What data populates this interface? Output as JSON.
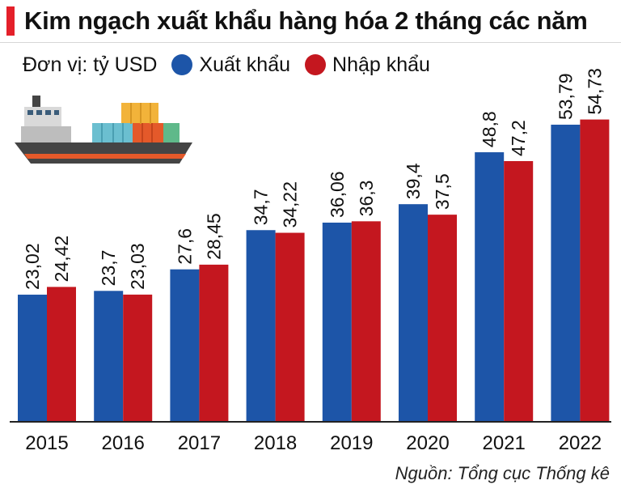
{
  "title": "Kim ngạch xuất khẩu hàng hóa 2 tháng các năm",
  "unit_label": "Đơn vị: tỷ USD",
  "source": "Nguồn: Tổng cục Thống kê",
  "colors": {
    "accent": "#e4202a",
    "export": "#1d55a8",
    "import": "#c4171f",
    "baseline": "#222222"
  },
  "illustration": "cargo-ship-icon",
  "chart_data": {
    "type": "bar",
    "title": "Kim ngạch xuất khẩu hàng hóa 2 tháng các năm",
    "xlabel": "",
    "ylabel": "tỷ USD",
    "ylim": [
      0,
      62
    ],
    "grid": false,
    "legend_position": "top-left",
    "categories": [
      "2015",
      "2016",
      "2017",
      "2018",
      "2019",
      "2020",
      "2021",
      "2022"
    ],
    "series": [
      {
        "name": "Xuất khẩu",
        "color": "#1d55a8",
        "values": [
          23.02,
          23.7,
          27.6,
          34.7,
          36.06,
          39.4,
          48.8,
          53.79
        ],
        "labels": [
          "23,02",
          "23,7",
          "27,6",
          "34,7",
          "36,06",
          "39,4",
          "48,8",
          "53,79"
        ]
      },
      {
        "name": "Nhập khẩu",
        "color": "#c4171f",
        "values": [
          24.42,
          23.03,
          28.45,
          34.22,
          36.3,
          37.5,
          47.2,
          54.73
        ],
        "labels": [
          "24,42",
          "23,03",
          "28,45",
          "34,22",
          "36,3",
          "37,5",
          "47,2",
          "54,73"
        ]
      }
    ]
  }
}
